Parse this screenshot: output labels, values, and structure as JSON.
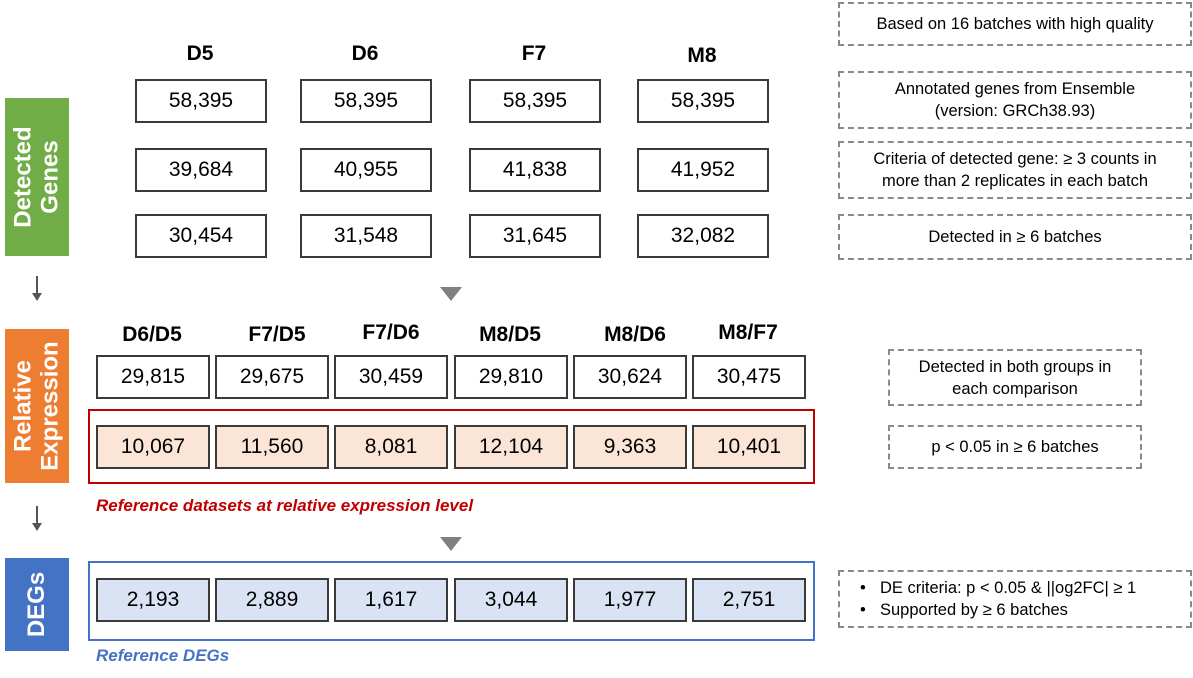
{
  "colors": {
    "green": "#70ad47",
    "orange": "#ed7d31",
    "blue": "#4472c4",
    "red_frame": "#c00000",
    "orange_fill": "#fbe5d6",
    "blue_fill": "#dae3f3"
  },
  "sections": {
    "detected": {
      "label": "Detected\nGenes"
    },
    "relative": {
      "label": "Relative\nExpression"
    },
    "degs": {
      "label": "DEGs"
    }
  },
  "detected_columns": [
    "D5",
    "D6",
    "F7",
    "M8"
  ],
  "detected_rows": [
    [
      "58,395",
      "58,395",
      "58,395",
      "58,395"
    ],
    [
      "39,684",
      "40,955",
      "41,838",
      "41,952"
    ],
    [
      "30,454",
      "31,548",
      "31,645",
      "32,082"
    ]
  ],
  "comparison_columns": [
    "D6/D5",
    "F7/D5",
    "F7/D6",
    "M8/D5",
    "M8/D6",
    "M8/F7"
  ],
  "relative_rows": [
    [
      "29,815",
      "29,675",
      "30,459",
      "29,810",
      "30,624",
      "30,475"
    ],
    [
      "10,067",
      "11,560",
      "8,081",
      "12,104",
      "9,363",
      "10,401"
    ]
  ],
  "deg_row": [
    "2,193",
    "2,889",
    "1,617",
    "3,044",
    "1,977",
    "2,751"
  ],
  "captions": {
    "reference_datasets": "Reference datasets at relative expression level",
    "reference_degs": "Reference DEGs"
  },
  "notes": {
    "batches": "Based on 16 batches with high quality",
    "annotated": [
      "Annotated genes from Ensemble",
      "(version: GRCh38.93)"
    ],
    "criteria": [
      "Criteria of detected gene: ≥ 3 counts in",
      "more than 2 replicates in each batch"
    ],
    "detected_batches": "Detected in ≥ 6 batches",
    "both_groups": [
      "Detected in both groups in",
      "each comparison"
    ],
    "pvalue": "p < 0.05 in ≥ 6 batches",
    "de_criteria": [
      "DE criteria: p < 0.05 & ||og2FC| ≥ 1",
      "Supported by ≥ 6 batches"
    ]
  }
}
